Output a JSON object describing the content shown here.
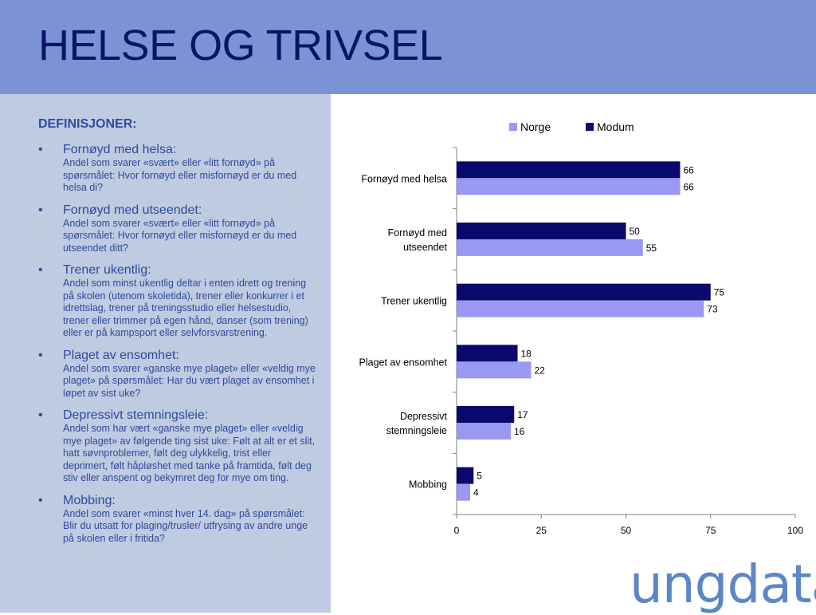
{
  "header": {
    "title": "HELSE OG TRIVSEL"
  },
  "definitions": {
    "heading": "DEFINISJONER:",
    "items": [
      {
        "term": "Fornøyd med helsa:",
        "desc": "Andel som svarer «svært» eller «litt fornøyd» på spørsmålet: Hvor fornøyd eller misfornøyd er du med helsa di?"
      },
      {
        "term": "Fornøyd med utseendet:",
        "desc": "Andel som svarer «svært» eller «litt fornøyd» på spørsmålet: Hvor fornøyd eller misfornøyd er du med utseendet ditt?"
      },
      {
        "term": "Trener ukentlig:",
        "desc": "Andel som minst ukentlig deltar i enten idrett og trening på skolen (utenom skoletida), trener eller konkurrer i et idrettslag, trener på treningsstudio eller helsestudio, trener eller trimmer på egen hånd, danser (som trening) eller er på kampsport eller selvforsvarstrening."
      },
      {
        "term": "Plaget av ensomhet:",
        "desc": "Andel som svarer «ganske mye plaget» eller «veldig mye plaget» på spørsmålet: Har du vært plaget av ensomhet i løpet av sist uke?"
      },
      {
        "term": "Depressivt stemningsleie:",
        "desc": "Andel som har vært «ganske mye plaget» eller «veldig mye plaget» av følgende ting sist uke: Følt at alt er et slit, hatt søvnproblemer, følt deg ulykkelig, trist eller deprimert, følt håpløshet med tanke på framtida, følt deg stiv eller anspent og bekymret deg for mye om ting."
      },
      {
        "term": "Mobbing:",
        "desc": "Andel som svarer «minst hver 14. dag» på spørsmålet: Blir du utsatt for plaging/trusler/ utfrysing av andre unge på skolen eller i fritida?"
      }
    ]
  },
  "chart_data": {
    "type": "bar",
    "orientation": "horizontal",
    "categories": [
      [
        "Fornøyd med helsa"
      ],
      [
        "Fornøyd med",
        "utseendet"
      ],
      [
        "Trener ukentlig"
      ],
      [
        "Plaget av ensomhet"
      ],
      [
        "Depressivt",
        "stemningsleie"
      ],
      [
        "Mobbing"
      ]
    ],
    "series": [
      {
        "name": "Modum",
        "color": "#0a0a6e",
        "values": [
          66,
          50,
          75,
          18,
          17,
          5
        ]
      },
      {
        "name": "Norge",
        "color": "#9999f2",
        "values": [
          66,
          55,
          73,
          22,
          16,
          4
        ]
      }
    ],
    "legend_order": [
      "Norge",
      "Modum"
    ],
    "legend_position": "top",
    "xlim": [
      0,
      100
    ],
    "xticks": [
      0,
      25,
      50,
      75,
      100
    ],
    "grid": false
  },
  "logo": {
    "text": "ungdata"
  }
}
